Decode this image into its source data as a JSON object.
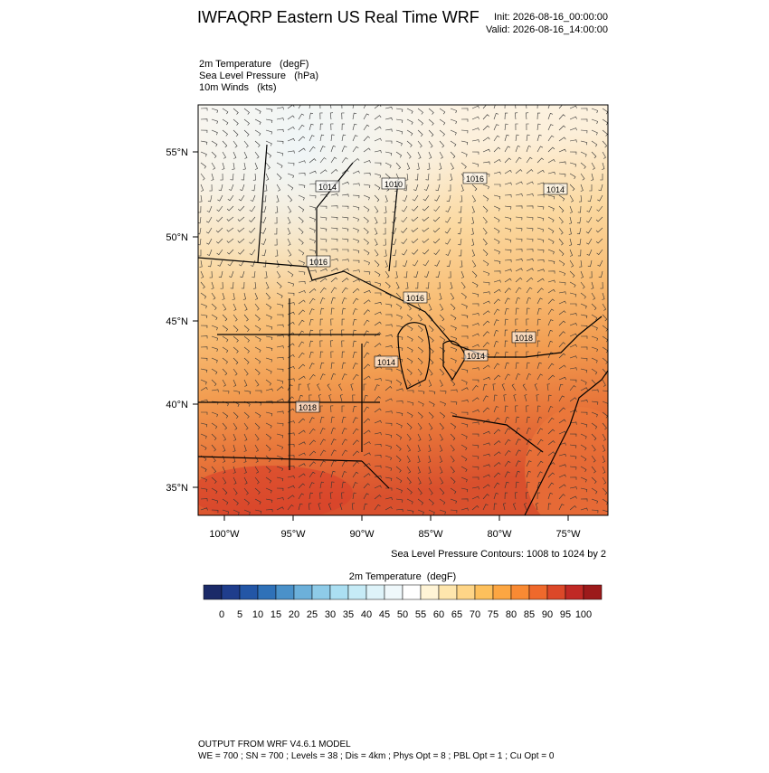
{
  "header": {
    "title": "IWFAQRP Eastern US Real Time WRF",
    "init": "Init: 2026-08-16_00:00:00",
    "valid": "Valid: 2026-08-16_14:00:00"
  },
  "fields": [
    "2m Temperature   (degF)",
    "Sea Level Pressure   (hPa)",
    "10m Winds   (kts)"
  ],
  "map": {
    "lat_labels": [
      "55°N",
      "50°N",
      "45°N",
      "40°N",
      "35°N"
    ],
    "lon_labels": [
      "100°W",
      "95°W",
      "90°W",
      "85°W",
      "80°W",
      "75°W"
    ],
    "contour_labels": [
      "1014",
      "1010",
      "1016",
      "1016",
      "1016",
      "1014",
      "1018",
      "1014",
      "1014",
      "1018"
    ],
    "contour_note": "Sea Level Pressure Contours: 1008 to 1024 by 2"
  },
  "colorbar": {
    "title": "2m Temperature  (degF)",
    "labels": [
      0,
      5,
      10,
      15,
      20,
      25,
      30,
      35,
      40,
      45,
      50,
      55,
      60,
      65,
      70,
      75,
      80,
      85,
      90,
      95,
      100
    ],
    "colors": [
      "#1b2a68",
      "#1f3d8c",
      "#2356a6",
      "#2f71b8",
      "#4a91c9",
      "#6cb0da",
      "#8ecbe8",
      "#abdff2",
      "#c6ebf6",
      "#def3f9",
      "#eff8fb",
      "#ffffff",
      "#fff4d6",
      "#fee6ad",
      "#fed587",
      "#fdc05c",
      "#fca642",
      "#f98a33",
      "#ef692c",
      "#dc4829",
      "#c02925",
      "#9c1a1b"
    ]
  },
  "footer": {
    "line1": "OUTPUT FROM WRF V4.6.1 MODEL",
    "line2": "WE = 700 ; SN = 700 ; Levels = 38 ; Dis = 4km ; Phys Opt = 8 ; PBL Opt = 1 ; Cu Opt = 0"
  }
}
